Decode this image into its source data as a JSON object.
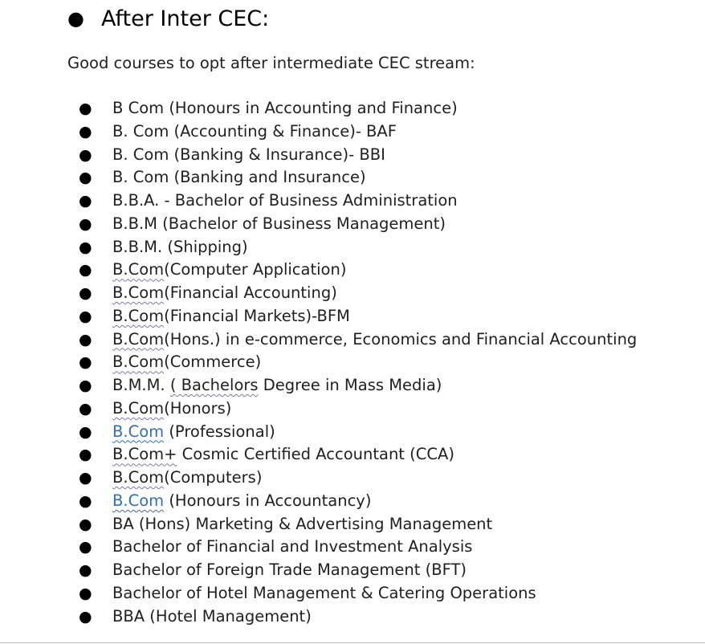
{
  "heading": {
    "bullet": "●",
    "text": "After Inter CEC:"
  },
  "intro": "Good courses to opt after intermediate CEC stream:",
  "list_bullet": "●",
  "courses": [
    {
      "parts": [
        {
          "t": "B Com (Honours in Accounting and Finance)",
          "s": "n"
        }
      ]
    },
    {
      "parts": [
        {
          "t": "B. Com (Accounting & Finance)- BAF",
          "s": "n"
        }
      ]
    },
    {
      "parts": [
        {
          "t": "B. Com (Banking & Insurance)- BBI",
          "s": "n"
        }
      ]
    },
    {
      "parts": [
        {
          "t": "B. Com (Banking and Insurance)",
          "s": "n"
        }
      ]
    },
    {
      "parts": [
        {
          "t": "B.B.A. - Bachelor of Business Administration",
          "s": "n"
        }
      ]
    },
    {
      "parts": [
        {
          "t": "B.B.M (Bachelor of Business Management)",
          "s": "n"
        }
      ]
    },
    {
      "parts": [
        {
          "t": "B.B.M. (Shipping)",
          "s": "n"
        }
      ]
    },
    {
      "parts": [
        {
          "t": "B.Com",
          "s": "sp"
        },
        {
          "t": "(Computer Application)",
          "s": "n"
        }
      ]
    },
    {
      "parts": [
        {
          "t": "B.Com",
          "s": "sp"
        },
        {
          "t": "(Financial Accounting)",
          "s": "n"
        }
      ]
    },
    {
      "parts": [
        {
          "t": "B.Com",
          "s": "sp"
        },
        {
          "t": "(Financial Markets)-BFM",
          "s": "n"
        }
      ]
    },
    {
      "parts": [
        {
          "t": "B.Com",
          "s": "sp"
        },
        {
          "t": "(Hons.) in e-commerce, Economics and Financial Accounting",
          "s": "n"
        }
      ]
    },
    {
      "parts": [
        {
          "t": "B.Com",
          "s": "sp"
        },
        {
          "t": "(Commerce)",
          "s": "n"
        }
      ]
    },
    {
      "parts": [
        {
          "t": "B.M.M. ",
          "s": "n"
        },
        {
          "t": "( Bachelors",
          "s": "sp"
        },
        {
          "t": " Degree in Mass Media)",
          "s": "n"
        }
      ]
    },
    {
      "parts": [
        {
          "t": "B.Com",
          "s": "sp"
        },
        {
          "t": "(Honors)",
          "s": "n"
        }
      ]
    },
    {
      "parts": [
        {
          "t": "B.Com",
          "s": "lnk"
        },
        {
          "t": " (Professional)",
          "s": "n"
        }
      ]
    },
    {
      "parts": [
        {
          "t": "B.Com+",
          "s": "sp"
        },
        {
          "t": " Cosmic Certified Accountant (CCA)",
          "s": "n"
        }
      ]
    },
    {
      "parts": [
        {
          "t": "B.Com",
          "s": "sp"
        },
        {
          "t": "(Computers)",
          "s": "n"
        }
      ]
    },
    {
      "parts": [
        {
          "t": "B.Com",
          "s": "lnk"
        },
        {
          "t": " (Honours in Accountancy)",
          "s": "n"
        }
      ]
    },
    {
      "parts": [
        {
          "t": "BA (Hons) Marketing & Advertising Management",
          "s": "n"
        }
      ]
    },
    {
      "parts": [
        {
          "t": "Bachelor of Financial and Investment Analysis",
          "s": "n"
        }
      ]
    },
    {
      "parts": [
        {
          "t": "Bachelor of Foreign Trade Management (BFT)",
          "s": "n"
        }
      ]
    },
    {
      "parts": [
        {
          "t": "Bachelor of Hotel Management & Catering Operations",
          "s": "n"
        }
      ]
    },
    {
      "parts": [
        {
          "t": "BBA (Hotel Management)",
          "s": "n"
        }
      ]
    }
  ],
  "colors": {
    "link": "#2e6fb5",
    "spellcheck_underline": "#7a7aa8",
    "text": "#1f1f1f"
  }
}
